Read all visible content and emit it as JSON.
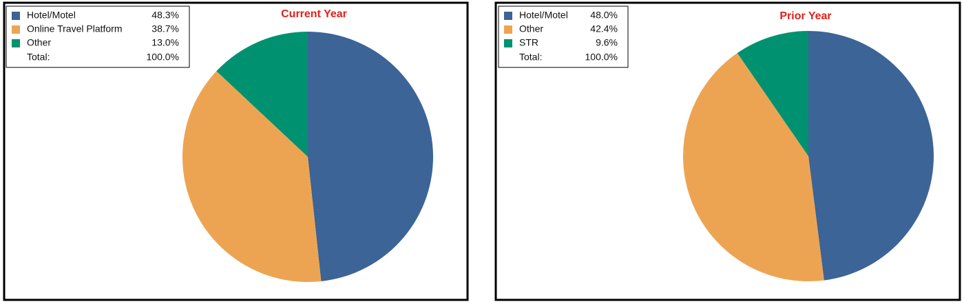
{
  "chart_data": [
    {
      "type": "pie",
      "title": "Current Year",
      "categories": [
        "Hotel/Motel",
        "Online Travel Platform",
        "Other"
      ],
      "values": [
        48.3,
        38.7,
        13.0
      ],
      "value_labels": [
        "48.3%",
        "38.7%",
        "13.0%"
      ],
      "colors": [
        "#3c6496",
        "#eda452",
        "#009270"
      ],
      "total_label": "Total:",
      "total": 100,
      "total_value_label": "100.0%"
    },
    {
      "type": "pie",
      "title": "Prior Year",
      "categories": [
        "Hotel/Motel",
        "Other",
        "STR"
      ],
      "values": [
        48.0,
        42.4,
        9.6
      ],
      "value_labels": [
        "48.0%",
        "42.4%",
        "9.6%"
      ],
      "colors": [
        "#3c6496",
        "#eda452",
        "#009270"
      ],
      "total_label": "Total:",
      "total": 100,
      "total_value_label": "100.0%"
    }
  ]
}
